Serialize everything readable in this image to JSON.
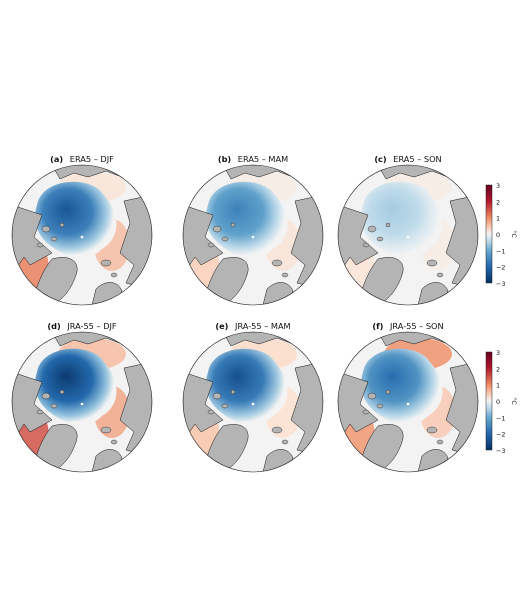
{
  "panels": [
    {
      "label": "(a)",
      "title": "ERA5 – DJF",
      "ice_anomaly": -2.3,
      "atlantic_anomaly": 1.1,
      "pacific_anomaly": 0.2
    },
    {
      "label": "(b)",
      "title": "ERA5 – MAM",
      "ice_anomaly": -1.6,
      "atlantic_anomaly": 0.4,
      "pacific_anomaly": 0.1
    },
    {
      "label": "(c)",
      "title": "ERA5 – SON",
      "ice_anomaly": -0.6,
      "atlantic_anomaly": 0.2,
      "pacific_anomaly": 0.1
    },
    {
      "label": "(d)",
      "title": "JRA-55 – DJF",
      "ice_anomaly": -2.8,
      "atlantic_anomaly": 1.5,
      "pacific_anomaly": 0.6
    },
    {
      "label": "(e)",
      "title": "JRA-55 – MAM",
      "ice_anomaly": -2.4,
      "atlantic_anomaly": 0.5,
      "pacific_anomaly": 0.3
    },
    {
      "label": "(f)",
      "title": "JRA-55 – SON",
      "ice_anomaly": -1.9,
      "atlantic_anomaly": 0.9,
      "pacific_anomaly": 1.0
    }
  ],
  "colorbars": [
    {
      "unit": "°C",
      "ticks": [
        "3",
        "2",
        "1",
        "0",
        "−1",
        "−2",
        "−3"
      ],
      "min": -3,
      "max": 3
    },
    {
      "unit": "°C",
      "ticks": [
        "3",
        "2",
        "1",
        "0",
        "−1",
        "−2",
        "−3"
      ],
      "min": -3,
      "max": 3
    }
  ],
  "colormap": "RdBu_r",
  "land_color": "#b4b4b4"
}
